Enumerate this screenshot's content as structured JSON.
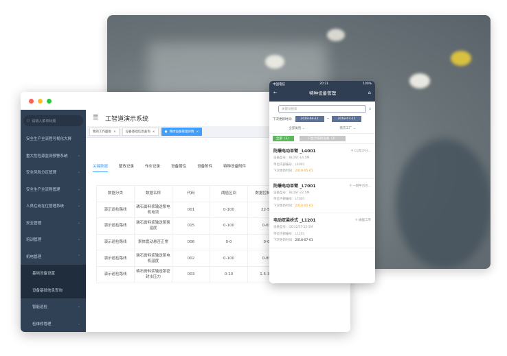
{
  "colors": {
    "sidebar": "#304156",
    "accent": "#409eff",
    "phone_header": "#2f3e52",
    "green": "#5cb85c",
    "orange": "#f0a020"
  },
  "window": {
    "dots": [
      "#fe5f57",
      "#febc2e",
      "#28c840"
    ]
  },
  "sidebar": {
    "search_placeholder": "请输入菜单标题",
    "items": [
      {
        "label": "安全生产全流程可视化大屏",
        "chev": ""
      },
      {
        "label": "重大危险源监测预警系统",
        "chev": "⌄"
      },
      {
        "label": "安全风险分区管理",
        "chev": "⌄"
      },
      {
        "label": "安全生产全流程管理",
        "chev": "⌄"
      },
      {
        "label": "人员在岗在位管理系统",
        "chev": "⌄"
      },
      {
        "label": "安全管理",
        "chev": "⌄"
      },
      {
        "label": "培训管理",
        "chev": "⌄"
      },
      {
        "label": "机电管理",
        "chev": "⌃"
      }
    ],
    "subitems": [
      "基础设备设置",
      "设备基础信息查询"
    ],
    "subitems2": [
      {
        "label": "智能巡检",
        "chev": "⌄"
      },
      {
        "label": "检维修管理",
        "chev": "⌄"
      }
    ]
  },
  "header": {
    "title": "工智道演示系统"
  },
  "tags": [
    "我的工作面板",
    "设备基础信息查询",
    "两体设备管理详情"
  ],
  "tabs": [
    "关键数据",
    "整改记录",
    "作业记录",
    "设备属性",
    "设备附件",
    "特种设备附件"
  ],
  "table": {
    "headers": [
      "数据分类",
      "数据名称",
      "代码",
      "阈值区间",
      "数据控制区间"
    ],
    "rows": [
      [
        "演示巡检路线",
        "磷石膏料浆输送泵电机电流",
        "001",
        "0-100",
        "22-58"
      ],
      [
        "演示巡检路线",
        "磷石膏料浆输送泵泵温度",
        "015",
        "0-100",
        "0-65"
      ],
      [
        "演示巡检路线",
        "泵体震动悬否正常",
        "006",
        "0-0",
        "0-0"
      ],
      [
        "演示巡检路线",
        "磷石膏料浆输送泵电机温度",
        "002",
        "0-100",
        "0-85"
      ],
      [
        "演示巡检路线",
        "磷石膏料浆输送泵密封水压力",
        "003",
        "0-10",
        "1.5-3.5"
      ]
    ]
  },
  "phone": {
    "carrier": "中国电信",
    "time": "20:21",
    "battery": "100%",
    "title": "特种设备管理",
    "search_placeholder": "关键词搜索",
    "date_label": "下次更新时间:",
    "date_from": "2018-04-11",
    "date_to": "2018-07-11",
    "filter1": "全部类别",
    "filter2": "南京工厂",
    "btn_all": "全部（3）",
    "btn_only": "只显示临检设备（2）",
    "cards": [
      {
        "title": "防爆电动单臂 _L4001",
        "loc": "CG泵冷分...",
        "model": "设备型号：BLDST-14.5M",
        "code": "单位内部编号：L4001",
        "next_label": "下次更新时间：",
        "next": "2018-05-01",
        "orange": true
      },
      {
        "title": "防爆电动单臂 _L7001",
        "loc": "一期平台合...",
        "model": "设备型号：BLDST-22.5M",
        "code": "单位内部编号：L7001",
        "next_label": "下次更新时间：",
        "next": "2018-05-01",
        "orange": true
      },
      {
        "title": "电动双梁桥式 _L1201",
        "loc": "磷酸工序",
        "model": "设备型号：QD32/5T-25.5M",
        "code": "单位内部编号：L1201",
        "next_label": "下次更新时间：",
        "next": "2018-07-01",
        "orange": false
      }
    ]
  }
}
